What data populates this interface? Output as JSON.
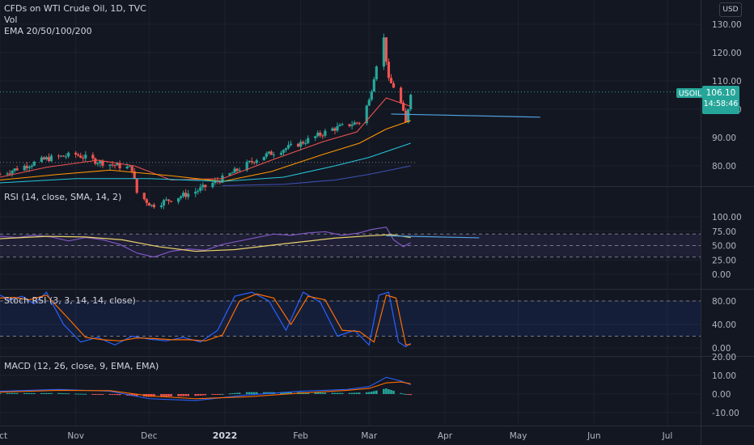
{
  "header": {
    "symbol_line": "CFDs on WTI Crude Oil, 1D, TVC",
    "vol_label": "Vol",
    "ema_label": "EMA 20/50/100/200",
    "currency": "USD"
  },
  "price_tag": {
    "symbol": "USOIL",
    "price": "106.10",
    "countdown": "14:58:46"
  },
  "colors": {
    "background": "#131722",
    "up": "#26a69a",
    "down": "#ef5350",
    "rsi_line": "#7e57c2",
    "rsi_ma": "#e9d26b",
    "stoch_k": "#2962ff",
    "stoch_d": "#ff6d00",
    "macd_line": "#2962ff",
    "signal_line": "#ff6d00",
    "price_tag": "#26a69a"
  },
  "chart_data": [
    {
      "type": "candlestick",
      "pane": "price",
      "ylim": [
        73,
        132
      ],
      "yticks": [
        "130.00",
        "120.00",
        "110.00",
        "100.00",
        "90.00",
        "80.00"
      ],
      "ytick_values": [
        130,
        120,
        110,
        100,
        90,
        80
      ],
      "xticks": [
        "Oct",
        "Nov",
        "Dec",
        "2022",
        "Feb",
        "Mar",
        "Apr",
        "May",
        "Jun",
        "Jul"
      ],
      "xtick_dates": [
        "2021-10-01",
        "2021-11-01",
        "2021-12-01",
        "2022-01-01",
        "2022-02-01",
        "2022-03-01",
        "2022-04-01",
        "2022-05-01",
        "2022-06-01",
        "2022-07-01"
      ],
      "legend": "CFDs on WTI Crude Oil, 1D, TVC",
      "last_price": 106.1,
      "series": [
        {
          "name": "EMA 20",
          "color": "#ef5350",
          "anchors_date": [
            "2021-10-01",
            "2021-10-20",
            "2021-11-10",
            "2021-11-25",
            "2021-12-10",
            "2021-12-31",
            "2022-01-20",
            "2022-02-10",
            "2022-02-24",
            "2022-03-08",
            "2022-03-18"
          ],
          "anchors_value": [
            76,
            79.5,
            82,
            80,
            75,
            75.5,
            82,
            88.5,
            92,
            104,
            101
          ]
        },
        {
          "name": "EMA 50",
          "color": "#ff9800",
          "anchors_date": [
            "2021-10-01",
            "2021-10-25",
            "2021-11-15",
            "2021-12-10",
            "2021-12-31",
            "2022-01-20",
            "2022-02-10",
            "2022-02-25",
            "2022-03-08",
            "2022-03-18"
          ],
          "anchors_value": [
            75,
            77,
            78.5,
            76.5,
            74.5,
            78,
            84,
            88,
            93,
            96
          ]
        },
        {
          "name": "EMA 100",
          "color": "#26c6da",
          "anchors_date": [
            "2021-10-01",
            "2021-11-01",
            "2021-12-01",
            "2021-12-31",
            "2022-01-25",
            "2022-02-15",
            "2022-03-01",
            "2022-03-18"
          ],
          "anchors_value": [
            74,
            75.5,
            75.5,
            74.5,
            76,
            80,
            83,
            88
          ]
        },
        {
          "name": "EMA 200",
          "color": "#3f51b5",
          "anchors_date": [
            "2021-12-31",
            "2022-01-25",
            "2022-02-15",
            "2022-03-01",
            "2022-03-18"
          ],
          "anchors_value": [
            73,
            73.5,
            75,
            77,
            80
          ]
        }
      ],
      "trendline": {
        "start_date": "2022-03-10",
        "start_value": 98.3,
        "end_date": "2022-05-10",
        "end_value": 97.2,
        "color": "#4fa3e0"
      },
      "reference_line_value": 81.2
    },
    {
      "type": "line",
      "pane": "rsi",
      "title": "RSI (14, close, SMA, 14, 2)",
      "ylim": [
        0,
        100
      ],
      "yticks": [
        "100.00",
        "75.00",
        "50.00",
        "25.00",
        "0.00"
      ],
      "ytick_values": [
        100,
        75,
        50,
        25,
        0
      ],
      "bands": [
        30,
        50,
        70
      ],
      "series": [
        {
          "name": "RSI",
          "color": "#7e57c2",
          "dates": [
            "2021-10-01",
            "2021-10-08",
            "2021-10-15",
            "2021-10-22",
            "2021-10-29",
            "2021-11-05",
            "2021-11-12",
            "2021-11-19",
            "2021-11-26",
            "2021-12-03",
            "2021-12-10",
            "2021-12-17",
            "2021-12-24",
            "2021-12-31",
            "2022-01-07",
            "2022-01-14",
            "2022-01-21",
            "2022-01-28",
            "2022-02-04",
            "2022-02-11",
            "2022-02-18",
            "2022-02-25",
            "2022-03-02",
            "2022-03-08",
            "2022-03-11",
            "2022-03-15",
            "2022-03-18"
          ],
          "values": [
            66,
            64,
            68,
            65,
            58,
            64,
            60,
            52,
            37,
            30,
            40,
            44,
            42,
            52,
            58,
            64,
            70,
            68,
            72,
            74,
            68,
            72,
            78,
            82,
            60,
            48,
            55
          ]
        },
        {
          "name": "RSI-based MA",
          "color": "#e9d26b",
          "dates": [
            "2021-10-01",
            "2021-10-20",
            "2021-11-05",
            "2021-11-20",
            "2021-12-05",
            "2021-12-20",
            "2022-01-05",
            "2022-01-25",
            "2022-02-15",
            "2022-03-01",
            "2022-03-10",
            "2022-03-18"
          ],
          "values": [
            62,
            66,
            65,
            60,
            48,
            40,
            43,
            53,
            63,
            67,
            69,
            64
          ]
        }
      ],
      "trendline": {
        "start_date": "2022-03-08",
        "start_value": 67,
        "end_date": "2022-04-15",
        "end_value": 63.5,
        "color": "#4fa3e0"
      }
    },
    {
      "type": "line",
      "pane": "stoch_rsi",
      "title": "Stoch RSI (3, 3, 14, 14, close)",
      "ylim": [
        0,
        100
      ],
      "yticks": [
        "80.00",
        "40.00",
        "0.00"
      ],
      "ytick_values": [
        80,
        40,
        0
      ],
      "bands": [
        20,
        80
      ],
      "series": [
        {
          "name": "%K",
          "color": "#2962ff",
          "dates": [
            "2021-10-01",
            "2021-10-05",
            "2021-10-10",
            "2021-10-15",
            "2021-10-20",
            "2021-10-27",
            "2021-11-03",
            "2021-11-10",
            "2021-11-17",
            "2021-11-24",
            "2021-12-01",
            "2021-12-08",
            "2021-12-15",
            "2021-12-22",
            "2021-12-29",
            "2022-01-05",
            "2022-01-12",
            "2022-01-19",
            "2022-01-26",
            "2022-02-02",
            "2022-02-09",
            "2022-02-16",
            "2022-02-23",
            "2022-03-01",
            "2022-03-05",
            "2022-03-09",
            "2022-03-13",
            "2022-03-16",
            "2022-03-18"
          ],
          "values": [
            90,
            82,
            88,
            75,
            95,
            40,
            10,
            18,
            5,
            20,
            15,
            12,
            18,
            10,
            30,
            88,
            95,
            80,
            30,
            95,
            78,
            20,
            30,
            5,
            90,
            95,
            10,
            2,
            8
          ]
        },
        {
          "name": "%D",
          "color": "#ff6d00",
          "dates": [
            "2021-10-01",
            "2021-10-07",
            "2021-10-13",
            "2021-10-20",
            "2021-10-29",
            "2021-11-05",
            "2021-11-12",
            "2021-11-19",
            "2021-11-26",
            "2021-12-03",
            "2021-12-10",
            "2021-12-17",
            "2021-12-24",
            "2021-12-31",
            "2022-01-07",
            "2022-01-14",
            "2022-01-21",
            "2022-01-28",
            "2022-02-04",
            "2022-02-11",
            "2022-02-18",
            "2022-02-25",
            "2022-03-03",
            "2022-03-08",
            "2022-03-12",
            "2022-03-16",
            "2022-03-18"
          ],
          "values": [
            85,
            86,
            82,
            90,
            50,
            18,
            14,
            12,
            17,
            16,
            14,
            14,
            12,
            22,
            80,
            92,
            85,
            40,
            88,
            82,
            30,
            28,
            10,
            90,
            85,
            5,
            6
          ]
        }
      ]
    },
    {
      "type": "bar",
      "pane": "macd",
      "title": "MACD (12, 26, close, 9, EMA, EMA)",
      "ylim": [
        -14,
        21
      ],
      "yticks": [
        "20.00",
        "10.00",
        "0.00",
        "-10.00"
      ],
      "ytick_values": [
        20,
        10,
        0,
        -10
      ],
      "series": [
        {
          "name": "MACD",
          "color": "#2962ff",
          "dates": [
            "2021-10-01",
            "2021-10-25",
            "2021-11-15",
            "2021-12-01",
            "2021-12-20",
            "2022-01-10",
            "2022-02-01",
            "2022-02-20",
            "2022-03-01",
            "2022-03-08",
            "2022-03-14",
            "2022-03-18"
          ],
          "values": [
            1.5,
            2.5,
            1.5,
            -2.5,
            -3.5,
            -0.5,
            1.5,
            2.5,
            4,
            9,
            7,
            5
          ]
        },
        {
          "name": "Signal",
          "color": "#ff6d00",
          "dates": [
            "2021-10-01",
            "2021-10-25",
            "2021-11-15",
            "2021-12-01",
            "2021-12-20",
            "2022-01-10",
            "2022-02-01",
            "2022-02-20",
            "2022-03-01",
            "2022-03-08",
            "2022-03-14",
            "2022-03-18"
          ],
          "values": [
            1,
            2,
            1.8,
            -1,
            -2.5,
            -1.5,
            0.5,
            2,
            3,
            6,
            6.5,
            5.5
          ]
        }
      ]
    }
  ]
}
